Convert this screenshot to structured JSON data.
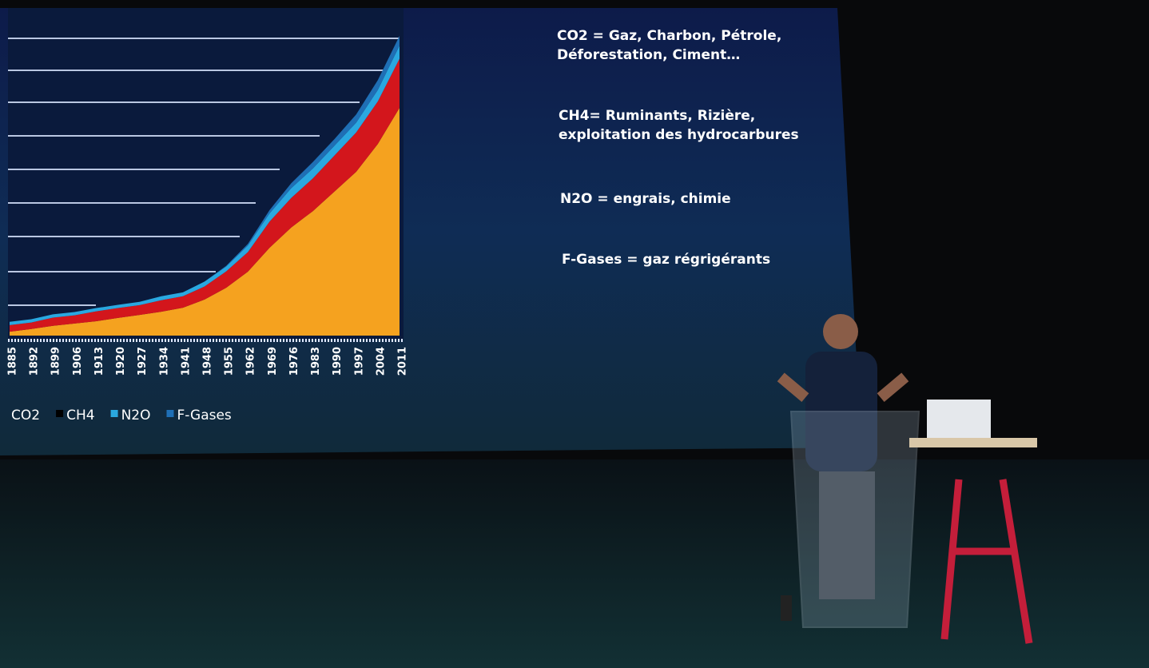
{
  "chart_data": {
    "type": "area",
    "stacked": true,
    "categories": [
      "1885",
      "1892",
      "1899",
      "1906",
      "1913",
      "1920",
      "1927",
      "1934",
      "1941",
      "1948",
      "1955",
      "1962",
      "1969",
      "1976",
      "1983",
      "1990",
      "1997",
      "2004",
      "2011"
    ],
    "series": [
      {
        "name": "CO2",
        "color": "#f5a21f",
        "values": [
          1.2,
          2,
          3,
          3.7,
          4.4,
          5.4,
          6.3,
          7.3,
          8.5,
          11,
          14.6,
          19.5,
          26.8,
          33,
          38,
          44,
          50,
          58.5,
          69.5
        ]
      },
      {
        "name": "CH4",
        "color": "#d3161c",
        "values": [
          2,
          2,
          2.5,
          2.5,
          3,
          3,
          3,
          3.5,
          3.5,
          4,
          5,
          6,
          8,
          9,
          10,
          11,
          12,
          13,
          15
        ]
      },
      {
        "name": "N2O",
        "color": "#2aa8e0",
        "values": [
          1,
          1,
          1,
          1,
          1,
          1,
          1,
          1.2,
          1.2,
          1.5,
          1.5,
          2,
          2.5,
          3,
          3,
          3,
          3,
          3.5,
          4
        ]
      },
      {
        "name": "F-Gases",
        "color": "#1f6fb5",
        "values": [
          0,
          0,
          0,
          0,
          0,
          0,
          0,
          0,
          0,
          0,
          0.2,
          0.5,
          1,
          1.5,
          2,
          2,
          2.5,
          3,
          3
        ]
      }
    ],
    "ylim": [
      0,
      100
    ],
    "grid": true
  },
  "slide_text": [
    [
      "CO2 = Gaz, Charbon, Pétrole,",
      "Déforestation, Ciment…"
    ],
    [
      "CH4= Ruminants, Rizière,",
      "exploitation des hydrocarbures"
    ],
    [
      "N2O = engrais, chimie"
    ],
    [
      "F-Gases = gaz régrigérants"
    ]
  ]
}
